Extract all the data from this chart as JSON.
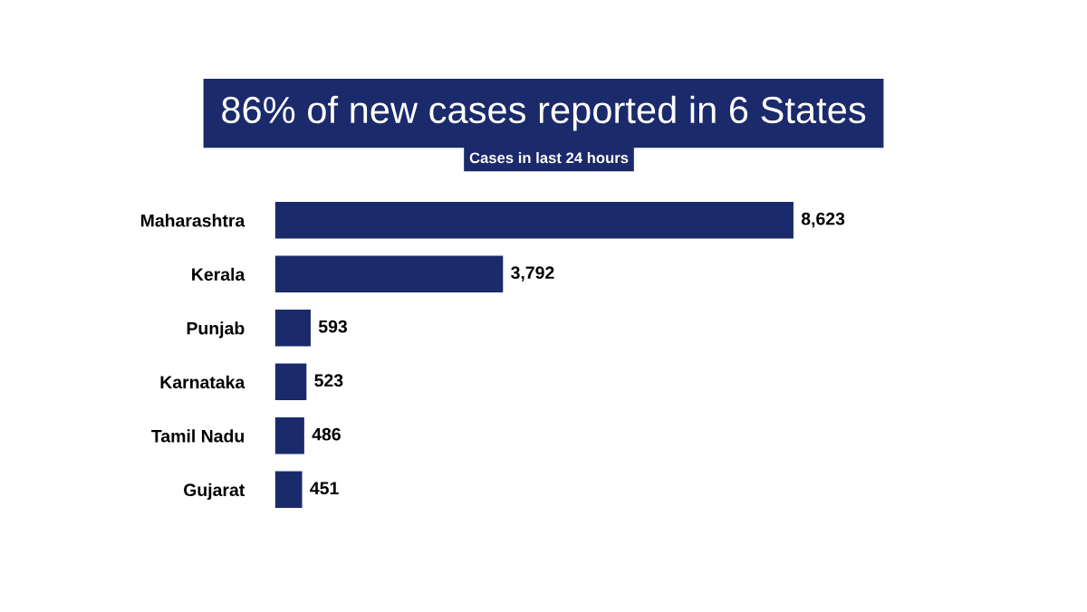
{
  "chart_data": {
    "type": "bar",
    "orientation": "horizontal",
    "title": "86% of new cases reported in 6 States",
    "subtitle": "Cases in last 24 hours",
    "categories": [
      "Maharashtra",
      "Kerala",
      "Punjab",
      "Karnataka",
      "Tamil Nadu",
      "Gujarat"
    ],
    "values": [
      8623,
      3792,
      593,
      523,
      486,
      451
    ],
    "value_labels": [
      "8,623",
      "3,792",
      "593",
      "523",
      "486",
      "451"
    ],
    "color": "#1b2a6b",
    "grid": false,
    "legend": false
  }
}
